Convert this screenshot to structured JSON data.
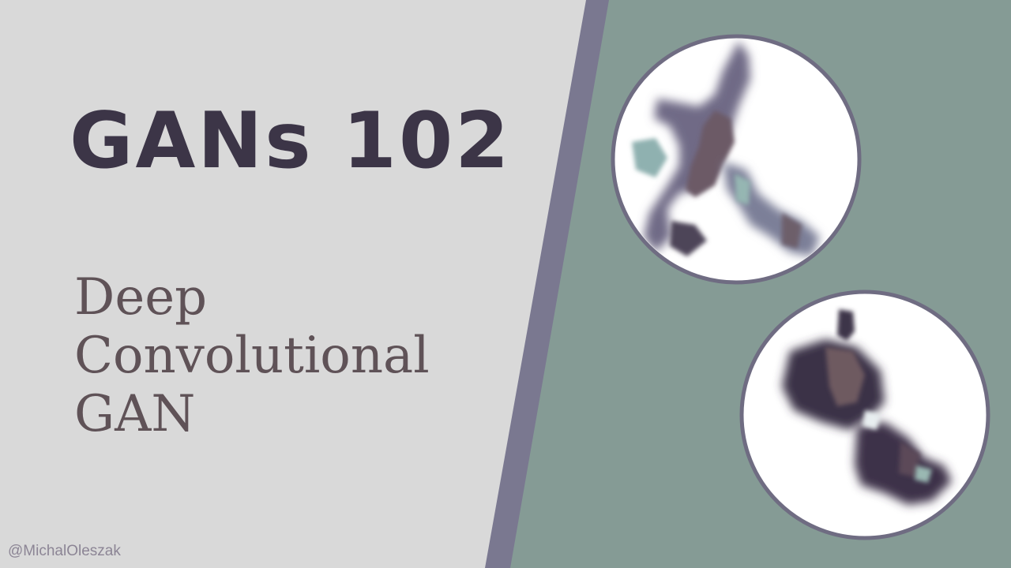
{
  "slide": {
    "title": "GANs 102",
    "subtitle_lines": [
      "Deep",
      "Convolutional",
      "GAN"
    ],
    "credit": "@MichalOleszak"
  },
  "colors": {
    "left_background": "#d9d9d9",
    "divider_stripe": "#7a7890",
    "right_background": "#859b95",
    "title_text": "#3c3547",
    "subtitle_text": "#5f5257",
    "credit_text": "#8c8595",
    "circle_fill": "#ffffff",
    "circle_border": "#6f6c82"
  },
  "images": [
    {
      "name": "generated-sample-top",
      "description_icon": "generated-blob-image"
    },
    {
      "name": "generated-sample-bottom",
      "description_icon": "generated-blob-image"
    }
  ]
}
